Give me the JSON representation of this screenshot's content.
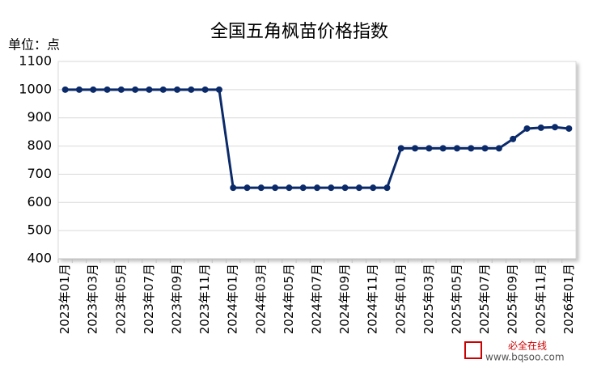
{
  "chart_data": {
    "type": "line",
    "title": "全国五角枫苗价格指数",
    "y_label": "单位：点",
    "categories": [
      "2023年01月",
      null,
      "2023年03月",
      null,
      "2023年05月",
      null,
      "2023年07月",
      null,
      "2023年09月",
      null,
      "2023年11月",
      null,
      "2024年01月",
      null,
      "2024年03月",
      null,
      "2024年05月",
      null,
      "2024年07月",
      null,
      "2024年09月",
      null,
      "2024年11月",
      null,
      "2025年01月",
      null,
      "2025年03月",
      null,
      "2025年05月",
      null,
      "2025年07月",
      null,
      "2025年09月",
      null,
      "2025年11月",
      null,
      "2026年01月"
    ],
    "values": [
      1000,
      1000,
      1000,
      1000,
      1000,
      1000,
      1000,
      1000,
      1000,
      1000,
      1000,
      1000,
      652,
      652,
      652,
      652,
      652,
      652,
      652,
      652,
      652,
      652,
      652,
      652,
      792,
      792,
      792,
      792,
      792,
      792,
      792,
      792,
      825,
      862,
      865,
      867,
      862
    ],
    "color": "#0b2a6a",
    "ylim": [
      400,
      1100
    ],
    "yticks": [
      400,
      500,
      600,
      700,
      800,
      900,
      1000,
      1100
    ],
    "grid": true
  },
  "watermark": {
    "brand": "必全在线",
    "url": "www.bqsoo.com"
  }
}
